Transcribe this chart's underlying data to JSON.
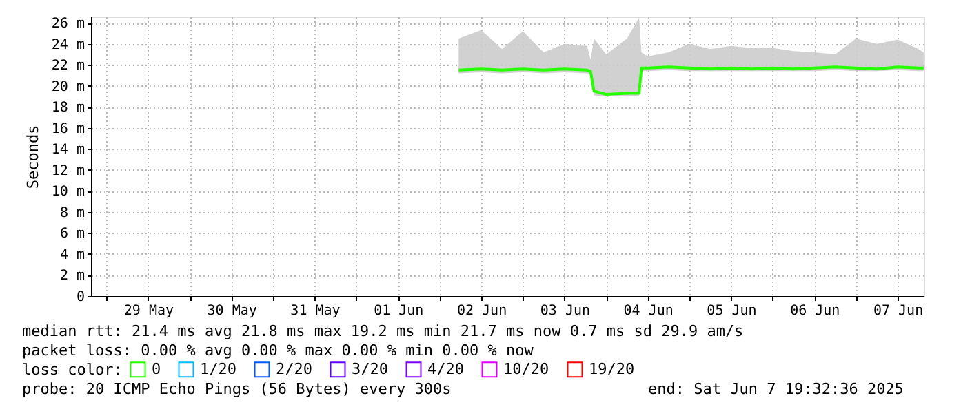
{
  "chart_data": {
    "type": "line",
    "ylabel": "Seconds",
    "legend_title": "loss color:",
    "legend": "bottom",
    "grid": true,
    "marker": "none",
    "line_style": "solid",
    "ylim": [
      0,
      26.6
    ],
    "yticks": [
      0,
      {
        "value": 2,
        "label": "2 m"
      },
      {
        "value": 4,
        "label": "4 m"
      },
      {
        "value": 6,
        "label": "6 m"
      },
      {
        "value": 8,
        "label": "8 m"
      },
      {
        "value": 10,
        "label": "10 m"
      },
      {
        "value": 12,
        "label": "12 m"
      },
      {
        "value": 14,
        "label": "14 m"
      },
      {
        "value": 16,
        "label": "16 m"
      },
      {
        "value": 18,
        "label": "18 m"
      },
      {
        "value": 20,
        "label": "20 m"
      },
      {
        "value": 22,
        "label": "22 m"
      },
      {
        "value": 24,
        "label": "24 m"
      },
      {
        "value": 26,
        "label": "26 m"
      }
    ],
    "xlim": [
      "2025-05-28T19:32",
      "2025-06-07T19:32"
    ],
    "xticks": [
      {
        "value": "2025-05-29T00:00",
        "label": null
      },
      {
        "value": "2025-05-29T12:00",
        "label": "29 May"
      },
      {
        "value": "2025-05-30T00:00",
        "label": null
      },
      {
        "value": "2025-05-30T12:00",
        "label": "30 May"
      },
      {
        "value": "2025-05-31T00:00",
        "label": null
      },
      {
        "value": "2025-05-31T12:00",
        "label": "31 May"
      },
      {
        "value": "2025-06-01T00:00",
        "label": null
      },
      {
        "value": "2025-06-01T12:00",
        "label": "01 Jun"
      },
      {
        "value": "2025-06-02T00:00",
        "label": null
      },
      {
        "value": "2025-06-02T12:00",
        "label": "02 Jun"
      },
      {
        "value": "2025-06-03T00:00",
        "label": null
      },
      {
        "value": "2025-06-03T12:00",
        "label": "03 Jun"
      },
      {
        "value": "2025-06-04T00:00",
        "label": null
      },
      {
        "value": "2025-06-04T12:00",
        "label": "04 Jun"
      },
      {
        "value": "2025-06-05T00:00",
        "label": null
      },
      {
        "value": "2025-06-05T12:00",
        "label": "05 Jun"
      },
      {
        "value": "2025-06-06T00:00",
        "label": null
      },
      {
        "value": "2025-06-06T12:00",
        "label": "06 Jun"
      },
      {
        "value": "2025-06-07T00:00",
        "label": null
      },
      {
        "value": "2025-06-07T12:00",
        "label": "07 Jun"
      }
    ],
    "x": [
      "2025-06-02T05:30",
      "2025-06-02T12:00",
      "2025-06-02T18:00",
      "2025-06-03T00:00",
      "2025-06-03T06:00",
      "2025-06-03T12:00",
      "2025-06-03T18:30",
      "2025-06-03T19:30",
      "2025-06-03T20:30",
      "2025-06-04T00:00",
      "2025-06-04T06:00",
      "2025-06-04T09:30",
      "2025-06-04T09:50",
      "2025-06-04T10:10",
      "2025-06-04T12:00",
      "2025-06-04T18:00",
      "2025-06-05T00:00",
      "2025-06-05T06:00",
      "2025-06-05T12:00",
      "2025-06-05T18:00",
      "2025-06-06T00:00",
      "2025-06-06T06:00",
      "2025-06-06T12:00",
      "2025-06-06T18:00",
      "2025-06-07T00:00",
      "2025-06-07T06:00",
      "2025-06-07T12:00",
      "2025-06-07T18:00",
      "2025-06-07T19:30"
    ],
    "series": [
      {
        "name": "0",
        "color": "#26ff00",
        "values": [
          21.5,
          21.6,
          21.5,
          21.6,
          21.5,
          21.6,
          21.5,
          21.4,
          19.5,
          19.2,
          19.3,
          19.3,
          20.5,
          21.7,
          21.7,
          21.8,
          21.7,
          21.6,
          21.7,
          21.6,
          21.7,
          21.6,
          21.7,
          21.8,
          21.7,
          21.6,
          21.8,
          21.7,
          21.7
        ],
        "lower": [
          21.2,
          21.3,
          21.2,
          21.3,
          21.2,
          21.3,
          21.2,
          21.1,
          19.1,
          19.0,
          19.0,
          19.0,
          20.3,
          21.4,
          21.4,
          21.5,
          21.4,
          21.4,
          21.4,
          21.4,
          21.4,
          21.4,
          21.4,
          21.5,
          21.4,
          21.4,
          21.5,
          21.4,
          21.4
        ],
        "upper": [
          24.5,
          25.3,
          23.5,
          25.2,
          23.2,
          24.0,
          23.8,
          22.5,
          24.5,
          23.0,
          24.5,
          26.5,
          24.8,
          23.2,
          22.8,
          23.2,
          24.0,
          23.5,
          23.8,
          23.6,
          23.6,
          23.3,
          23.2,
          23.0,
          24.5,
          24.0,
          24.4,
          23.5,
          23.2
        ]
      },
      {
        "name": "1/20",
        "color": "#00b8ff",
        "values": [
          null,
          null,
          null,
          null,
          null,
          null,
          null,
          null,
          null,
          null,
          null,
          null,
          null,
          null,
          null,
          null,
          null,
          null,
          null,
          null,
          null,
          null,
          null,
          null,
          null,
          null,
          null,
          null,
          null
        ]
      },
      {
        "name": "2/20",
        "color": "#0059ff",
        "values": [
          null,
          null,
          null,
          null,
          null,
          null,
          null,
          null,
          null,
          null,
          null,
          null,
          null,
          null,
          null,
          null,
          null,
          null,
          null,
          null,
          null,
          null,
          null,
          null,
          null,
          null,
          null,
          null,
          null
        ]
      },
      {
        "name": "3/20",
        "color": "#5e00ff",
        "values": [
          null,
          null,
          null,
          null,
          null,
          null,
          null,
          null,
          null,
          null,
          null,
          null,
          null,
          null,
          null,
          null,
          null,
          null,
          null,
          null,
          null,
          null,
          null,
          null,
          null,
          null,
          null,
          null,
          null
        ]
      },
      {
        "name": "4/20",
        "color": "#7e00ff",
        "values": [
          null,
          null,
          null,
          null,
          null,
          null,
          null,
          null,
          null,
          null,
          null,
          null,
          null,
          null,
          null,
          null,
          null,
          null,
          null,
          null,
          null,
          null,
          null,
          null,
          null,
          null,
          null,
          null,
          null
        ]
      },
      {
        "name": "10/20",
        "color": "#dd00ff",
        "values": [
          null,
          null,
          null,
          null,
          null,
          null,
          null,
          null,
          null,
          null,
          null,
          null,
          null,
          null,
          null,
          null,
          null,
          null,
          null,
          null,
          null,
          null,
          null,
          null,
          null,
          null,
          null,
          null,
          null
        ]
      },
      {
        "name": "19/20",
        "color": "#ff0000",
        "values": [
          null,
          null,
          null,
          null,
          null,
          null,
          null,
          null,
          null,
          null,
          null,
          null,
          null,
          null,
          null,
          null,
          null,
          null,
          null,
          null,
          null,
          null,
          null,
          null,
          null,
          null,
          null,
          null,
          null
        ]
      }
    ],
    "annotations": [
      "median rtt:  21.4 ms avg  21.8 ms max  19.2 ms min  21.7 ms now  0.7 ms sd  29.9   am/s",
      "packet loss: 0.00 % avg  0.00 % max  0.00 % min  0.00 % now",
      "probe:       20 ICMP Echo Pings (56 Bytes) every 300s",
      "end: Sat Jun  7 19:32:36 2025"
    ]
  }
}
